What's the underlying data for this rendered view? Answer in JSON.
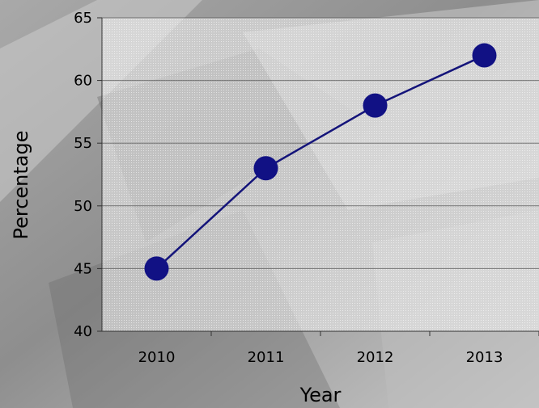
{
  "chart_data": {
    "type": "line",
    "title": "",
    "xlabel": "Year",
    "ylabel": "Percentage",
    "categories": [
      "2010",
      "2011",
      "2012",
      "2013"
    ],
    "values": [
      45,
      53,
      58,
      62
    ],
    "ylim": [
      40,
      65
    ],
    "yticks": [
      "40",
      "45",
      "50",
      "55",
      "60",
      "65"
    ],
    "grid": true,
    "legend": "none",
    "line_color": "#14147a",
    "marker_color": "#111184",
    "grid_color": "#555555",
    "plot_background": "#e6e6e6"
  }
}
